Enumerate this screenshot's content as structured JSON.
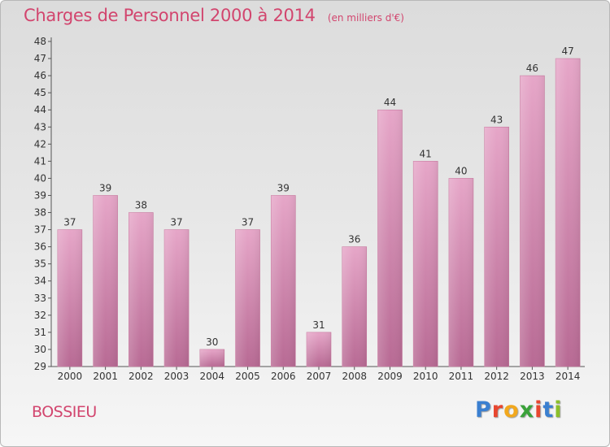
{
  "header": {
    "title": "Charges de Personnel 2000 à 2014",
    "unit": "(en milliers d'€)"
  },
  "footer": {
    "commune": "BOSSIEU",
    "logo_text": "Proxiti",
    "logo_colors": [
      "#3a7fd0",
      "#e8462f",
      "#f2a81d",
      "#3aa23a",
      "#e8462f",
      "#3a7fd0",
      "#8bbf2a"
    ]
  },
  "chart_data": {
    "type": "bar",
    "categories": [
      "2000",
      "2001",
      "2002",
      "2003",
      "2004",
      "2005",
      "2006",
      "2007",
      "2008",
      "2009",
      "2010",
      "2011",
      "2012",
      "2013",
      "2014"
    ],
    "values": [
      37,
      39,
      38,
      37,
      30,
      37,
      39,
      31,
      36,
      44,
      41,
      40,
      43,
      46,
      47
    ],
    "title": "Charges de Personnel 2000 à 2014",
    "ylim": [
      29,
      48
    ],
    "yticks": [
      29,
      30,
      31,
      32,
      33,
      34,
      35,
      36,
      37,
      38,
      39,
      40,
      41,
      42,
      43,
      44,
      45,
      46,
      47,
      48
    ],
    "grid": false,
    "bar_color": "#d98cb5"
  }
}
